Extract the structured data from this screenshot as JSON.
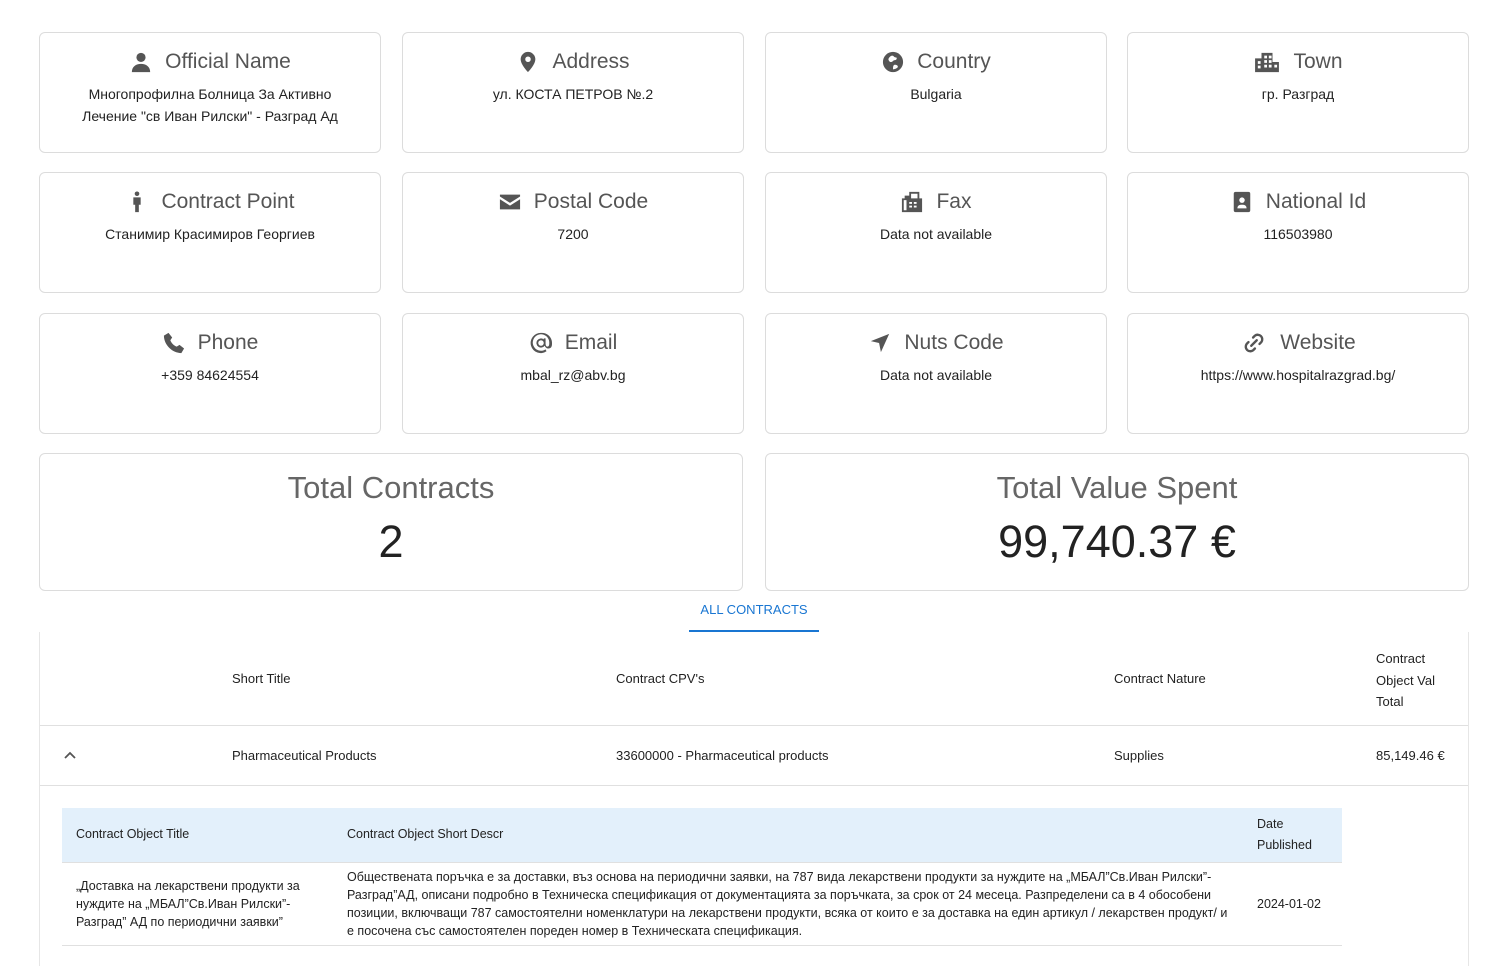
{
  "info_cards": [
    {
      "title": "Official Name",
      "icon": "person-icon",
      "value": "Многопрофилна Болница За Активно Лечение \"св Иван Рилски\" - Разград Ад"
    },
    {
      "title": "Address",
      "icon": "location-pin-icon",
      "value": "ул. КОСТА ПЕТРОВ №.2"
    },
    {
      "title": "Country",
      "icon": "globe-icon",
      "value": "Bulgaria"
    },
    {
      "title": "Town",
      "icon": "city-icon",
      "value": "гр. Разград"
    },
    {
      "title": "Contract Point",
      "icon": "person-standing-icon",
      "value": "Станимир Красимиров Георгиев"
    },
    {
      "title": "Postal Code",
      "icon": "envelope-icon",
      "value": "7200"
    },
    {
      "title": "Fax",
      "icon": "fax-icon",
      "value": "Data not available"
    },
    {
      "title": "National Id",
      "icon": "id-badge-icon",
      "value": "116503980"
    },
    {
      "title": "Phone",
      "icon": "phone-icon",
      "value": "+359 84624554"
    },
    {
      "title": "Email",
      "icon": "at-sign-icon",
      "value": "mbal_rz@abv.bg"
    },
    {
      "title": "Nuts Code",
      "icon": "navigation-arrow-icon",
      "value": "Data not available"
    },
    {
      "title": "Website",
      "icon": "link-icon",
      "value": "https://www.hospitalrazgrad.bg/"
    }
  ],
  "stats": {
    "total_contracts_label": "Total Contracts",
    "total_contracts_value": "2",
    "total_value_label": "Total Value Spent",
    "total_value_value": "99,740.37 €"
  },
  "tabs": {
    "all_contracts": "ALL CONTRACTS"
  },
  "table": {
    "headers": {
      "short_title": "Short Title",
      "cpvs": "Contract CPV's",
      "nature": "Contract Nature",
      "val_line1": "Contract",
      "val_line2": "Object Val",
      "val_line3": "Total"
    },
    "rows": [
      {
        "short_title": "Pharmaceutical Products",
        "cpvs": "33600000 - Pharmaceutical products",
        "nature": "Supplies",
        "value": "85,149.46 €",
        "expanded": true
      }
    ],
    "sub_headers": {
      "object_title": "Contract Object Title",
      "short_descr": "Contract Object Short Descr",
      "date_line1": "Date",
      "date_line2": "Published"
    },
    "sub_rows": [
      {
        "object_title": "„Доставка на лекарствени продукти за нуждите на „МБАЛ”Св.Иван Рилски”-Разград” АД по периодични заявки”",
        "short_descr": "Обществената поръчка е за доставки, въз основа на периодични заявки, на 787 вида лекарствени продукти за нуждите на „МБАЛ”Св.Иван Рилски”-Разград”АД, описани подробно в Техническа спецификация от документацията за поръчката, за срок от 24 месеца. Разпределени са в 4 обособени позиции, включващи 787 самостоятелни номенклатури на лекарствени продукти, всяка от които е за доставка на един артикул / лекарствен продукт/ и е посочена със самостоятелен пореден номер в Техническата спецификация.",
        "date_published": "2024-01-02"
      }
    ]
  }
}
